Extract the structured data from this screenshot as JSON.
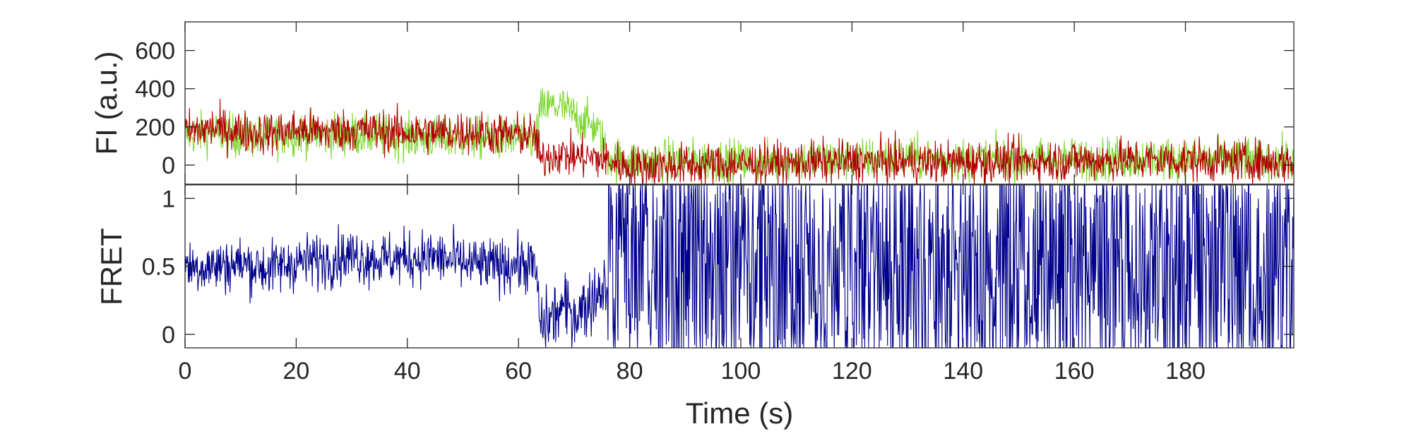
{
  "chart_data": [
    {
      "panel": "top",
      "type": "line",
      "ylabel": "FI (a.u.)",
      "xlabel": "",
      "ylim": [
        -100,
        750
      ],
      "xlim": [
        0,
        199.5
      ],
      "y_ticks": [
        0,
        200,
        400,
        600
      ],
      "y_tick_labels": [
        "0",
        "200",
        "400",
        "600"
      ],
      "grid": false,
      "series": [
        {
          "color": "#7ed62f",
          "x": [
            0,
            5,
            10,
            15,
            20,
            25,
            30,
            35,
            40,
            45,
            50,
            55,
            60,
            63,
            64,
            66,
            68,
            70,
            72,
            74,
            75,
            76,
            80,
            90,
            100,
            110,
            120,
            130,
            140,
            150,
            160,
            170,
            180,
            190,
            199.5
          ],
          "y": [
            160,
            170,
            150,
            150,
            165,
            160,
            165,
            150,
            145,
            140,
            140,
            140,
            135,
            130,
            290,
            310,
            300,
            260,
            230,
            195,
            140,
            40,
            20,
            25,
            20,
            25,
            30,
            35,
            30,
            25,
            30,
            35,
            30,
            30,
            20
          ]
        },
        {
          "color": "#b00000",
          "x": [
            0,
            5,
            10,
            15,
            20,
            25,
            30,
            35,
            40,
            45,
            50,
            55,
            60,
            63,
            64,
            66,
            68,
            70,
            72,
            74,
            76,
            80,
            90,
            100,
            110,
            120,
            130,
            140,
            150,
            160,
            170,
            180,
            190,
            199.5
          ],
          "y": [
            170,
            195,
            175,
            165,
            185,
            175,
            185,
            180,
            170,
            170,
            175,
            165,
            160,
            155,
            20,
            60,
            55,
            45,
            40,
            35,
            25,
            -10,
            0,
            5,
            10,
            20,
            15,
            15,
            20,
            25,
            25,
            25,
            20,
            15
          ]
        }
      ]
    },
    {
      "panel": "bottom",
      "type": "line",
      "ylabel": "FRET",
      "xlabel": "Time (s)",
      "ylim": [
        -0.1,
        1.1
      ],
      "xlim": [
        0,
        199.5
      ],
      "y_ticks": [
        0,
        0.5,
        1
      ],
      "y_tick_labels": [
        "0",
        "0.5",
        "1"
      ],
      "x_ticks": [
        0,
        20,
        40,
        60,
        80,
        100,
        120,
        140,
        160,
        180
      ],
      "x_tick_labels": [
        "0",
        "20",
        "40",
        "60",
        "80",
        "100",
        "120",
        "140",
        "160",
        "180"
      ],
      "grid": false,
      "series": [
        {
          "color": "#00008b",
          "x": [
            0,
            5,
            10,
            15,
            20,
            25,
            30,
            35,
            40,
            45,
            50,
            55,
            60,
            63,
            64,
            66,
            68,
            70,
            72,
            74,
            76,
            80,
            90,
            100,
            110,
            120,
            130,
            140,
            150,
            160,
            170,
            180,
            190,
            199.5
          ],
          "y": [
            0.5,
            0.5,
            0.52,
            0.48,
            0.53,
            0.55,
            0.58,
            0.55,
            0.56,
            0.57,
            0.52,
            0.5,
            0.52,
            0.5,
            0.05,
            0.12,
            0.2,
            0.15,
            0.2,
            0.3,
            0.4,
            0.55,
            0.55,
            0.5,
            0.55,
            0.5,
            0.55,
            0.5,
            0.55,
            0.5,
            0.5,
            0.5,
            0.55,
            0.5
          ]
        }
      ]
    }
  ]
}
